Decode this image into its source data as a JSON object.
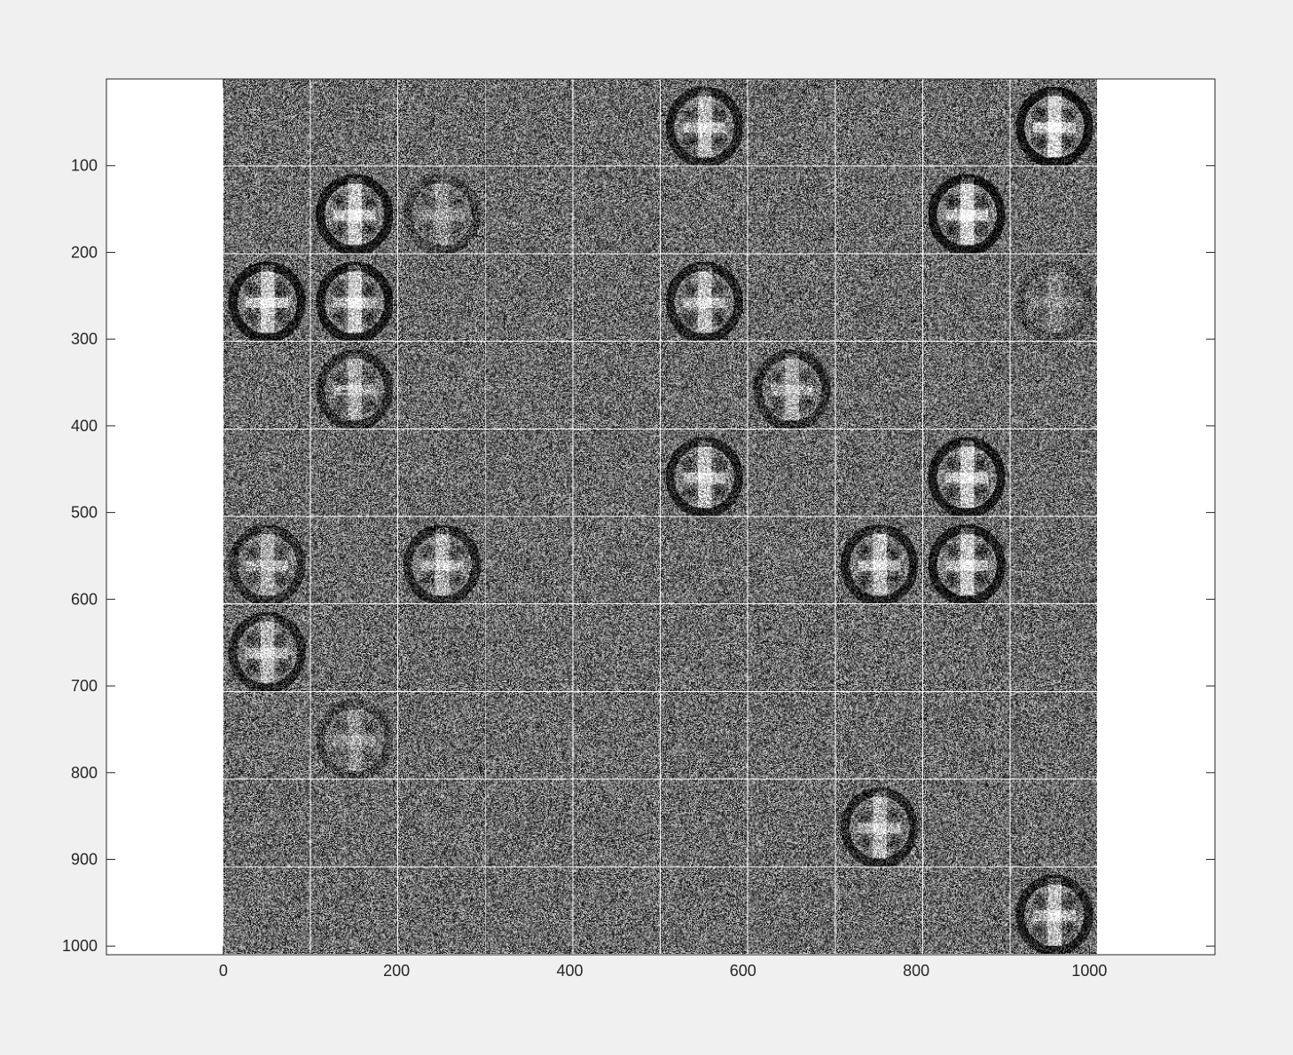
{
  "colors": {
    "figure_background": "#f0f0f0",
    "axes_background": "#ffffff",
    "axis_line": "#262626",
    "grid_separator": "#ffffff",
    "noise_dark": "#1a1a1a",
    "noise_light": "#d8d8d8"
  },
  "chart_data": {
    "type": "heatmap",
    "title": "",
    "xlabel": "",
    "ylabel": "",
    "colormap": "gray",
    "image_extent_x": [
      0,
      1010
    ],
    "image_extent_y": [
      0,
      1010
    ],
    "xlim": [
      -135,
      1145
    ],
    "ylim": [
      0,
      1010
    ],
    "y_direction": "reverse",
    "grid": false,
    "legend": "none",
    "x_ticks": [
      0,
      200,
      400,
      600,
      800,
      1000
    ],
    "x_tick_labels": [
      "0",
      "200",
      "400",
      "600",
      "800",
      "1000"
    ],
    "y_ticks": [
      100,
      200,
      300,
      400,
      500,
      600,
      700,
      800,
      900,
      1000
    ],
    "y_tick_labels": [
      "100",
      "200",
      "300",
      "400",
      "500",
      "600",
      "700",
      "800",
      "900",
      "1000"
    ],
    "tile_grid": {
      "rows": 10,
      "cols": 10,
      "tile_size": 100,
      "separator": 1
    },
    "tiles_with_face_pattern": [
      {
        "row": 0,
        "col": 5,
        "strength": 0.8
      },
      {
        "row": 0,
        "col": 9,
        "strength": 1.0
      },
      {
        "row": 1,
        "col": 1,
        "strength": 0.9
      },
      {
        "row": 1,
        "col": 2,
        "strength": 0.35
      },
      {
        "row": 1,
        "col": 8,
        "strength": 1.0
      },
      {
        "row": 2,
        "col": 0,
        "strength": 0.9
      },
      {
        "row": 2,
        "col": 1,
        "strength": 0.9
      },
      {
        "row": 2,
        "col": 5,
        "strength": 0.8
      },
      {
        "row": 2,
        "col": 9,
        "strength": 0.25
      },
      {
        "row": 3,
        "col": 1,
        "strength": 0.6
      },
      {
        "row": 3,
        "col": 6,
        "strength": 0.6
      },
      {
        "row": 4,
        "col": 5,
        "strength": 0.8
      },
      {
        "row": 4,
        "col": 8,
        "strength": 0.9
      },
      {
        "row": 5,
        "col": 0,
        "strength": 0.6
      },
      {
        "row": 5,
        "col": 2,
        "strength": 0.7
      },
      {
        "row": 5,
        "col": 7,
        "strength": 0.8
      },
      {
        "row": 5,
        "col": 8,
        "strength": 0.9
      },
      {
        "row": 6,
        "col": 0,
        "strength": 0.7
      },
      {
        "row": 7,
        "col": 1,
        "strength": 0.35
      },
      {
        "row": 8,
        "col": 7,
        "strength": 0.7
      },
      {
        "row": 9,
        "col": 9,
        "strength": 0.8
      }
    ]
  }
}
